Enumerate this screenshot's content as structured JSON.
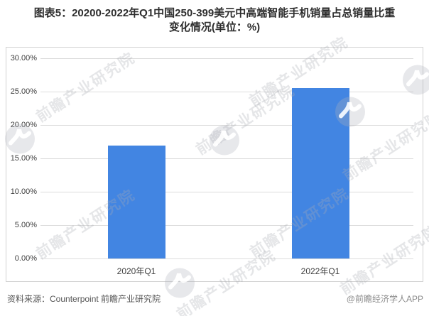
{
  "title": {
    "line1": "图表5：20200-2022年Q1中国250-399美元中高端智能手机销量占总销量比重",
    "line2": "变化情况(单位：%)"
  },
  "chart_data": {
    "type": "bar",
    "title": "图表5：20200-2022年Q1中国250-399美元中高端智能手机销量占总销量比重变化情况(单位：%)",
    "categories": [
      "2020年Q1",
      "2022年Q1"
    ],
    "values": [
      16.9,
      25.5
    ],
    "xlabel": "",
    "ylabel": "",
    "ylim": [
      0,
      30
    ],
    "ytick_interval": 5,
    "ytick_labels": [
      "30.00%",
      "25.00%",
      "20.00%",
      "15.00%",
      "10.00%",
      "5.00%",
      "0.00%"
    ],
    "bar_color": "#4285E2",
    "grid": true,
    "legend": false
  },
  "footer": {
    "source": "资料来源：Counterpoint 前瞻产业研究院",
    "credit": "@前瞻经济学人APP"
  },
  "watermark": {
    "text": "前瞻产业研究院",
    "logo": "qianzhan-swoosh-logo"
  },
  "colors": {
    "bar": "#4285E2",
    "grid": "#dcdcdc",
    "frame": "#d2d2d2",
    "title_text": "#2d2d2d",
    "axis_text": "#404040",
    "source_text": "#555555",
    "credit_text": "#8a8a8a"
  }
}
